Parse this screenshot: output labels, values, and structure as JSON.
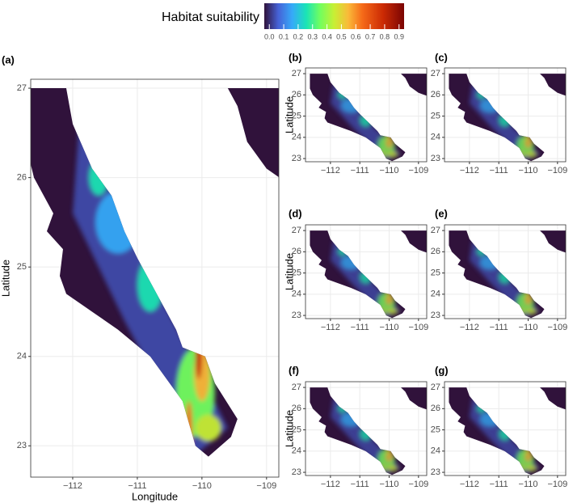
{
  "legend": {
    "title": "Habitat suitability",
    "lim": [
      -0.035,
      0.935
    ],
    "ticks": [
      {
        "value": 0,
        "label": "0.0"
      },
      0.1,
      0.2,
      0.3,
      0.4,
      0.5,
      0.6,
      0.7,
      0.8,
      0.9
    ]
  },
  "panels": [
    {
      "label": "(a)",
      "xlabel": "Longitude",
      "ylabel": "Latitude",
      "xlim": [
        -112.65,
        -108.81
      ],
      "ylim": [
        22.65,
        27.1
      ],
      "xticks": [
        {
          "value": -112,
          "label": "−112"
        },
        {
          "value": -111,
          "label": "−111"
        },
        {
          "value": -110,
          "label": "−110"
        },
        {
          "value": -109,
          "label": "−109"
        }
      ],
      "yticks": [
        23,
        24,
        25,
        26,
        27
      ]
    },
    {
      "label": "(b)",
      "ylabel": "Latitude",
      "xlim": [
        -112.85,
        -108.72
      ],
      "ylim": [
        22.85,
        27.27
      ],
      "xticks": [
        {
          "value": -112,
          "label": "−112"
        },
        {
          "value": -111,
          "label": "−111"
        },
        {
          "value": -110,
          "label": "−110"
        },
        {
          "value": -109,
          "label": "−109"
        }
      ],
      "yticks": [
        23,
        24,
        25,
        26,
        27
      ]
    },
    {
      "label": "(c)",
      "xlim": [
        -112.85,
        -108.72
      ],
      "ylim": [
        22.85,
        27.27
      ],
      "xticks": [
        {
          "value": -112,
          "label": "−112"
        },
        {
          "value": -111,
          "label": "−111"
        },
        {
          "value": -110,
          "label": "−110"
        },
        {
          "value": -109,
          "label": "−109"
        }
      ],
      "yticks": [
        23,
        24,
        25,
        26,
        27
      ]
    },
    {
      "label": "(d)",
      "ylabel": "Latitude",
      "xlim": [
        -112.85,
        -108.72
      ],
      "ylim": [
        22.85,
        27.27
      ],
      "xticks": [
        {
          "value": -112,
          "label": "−112"
        },
        {
          "value": -111,
          "label": "−111"
        },
        {
          "value": -110,
          "label": "−110"
        },
        {
          "value": -109,
          "label": "−109"
        }
      ],
      "yticks": [
        23,
        24,
        25,
        26,
        27
      ]
    },
    {
      "label": "(e)",
      "xlim": [
        -112.85,
        -108.72
      ],
      "ylim": [
        22.85,
        27.27
      ],
      "xticks": [
        {
          "value": -112,
          "label": "−112"
        },
        {
          "value": -111,
          "label": "−111"
        },
        {
          "value": -110,
          "label": "−110"
        },
        {
          "value": -109,
          "label": "−109"
        }
      ],
      "yticks": [
        23,
        24,
        25,
        26,
        27
      ]
    },
    {
      "label": "(f)",
      "ylabel": "Latitude",
      "xlim": [
        -112.85,
        -108.72
      ],
      "ylim": [
        22.85,
        27.27
      ],
      "xticks": [
        {
          "value": -112,
          "label": "−112"
        },
        {
          "value": -111,
          "label": "−111"
        },
        {
          "value": -110,
          "label": "−110"
        },
        {
          "value": -109,
          "label": "−109"
        }
      ],
      "yticks": [
        23,
        24,
        25,
        26,
        27
      ]
    },
    {
      "label": "(g)",
      "xlim": [
        -112.85,
        -108.72
      ],
      "ylim": [
        22.85,
        27.27
      ],
      "xticks": [
        {
          "value": -112,
          "label": "−112"
        },
        {
          "value": -111,
          "label": "−111"
        },
        {
          "value": -110,
          "label": "−110"
        },
        {
          "value": -109,
          "label": "−109"
        }
      ],
      "yticks": [
        23,
        24,
        25,
        26,
        27
      ]
    }
  ]
}
